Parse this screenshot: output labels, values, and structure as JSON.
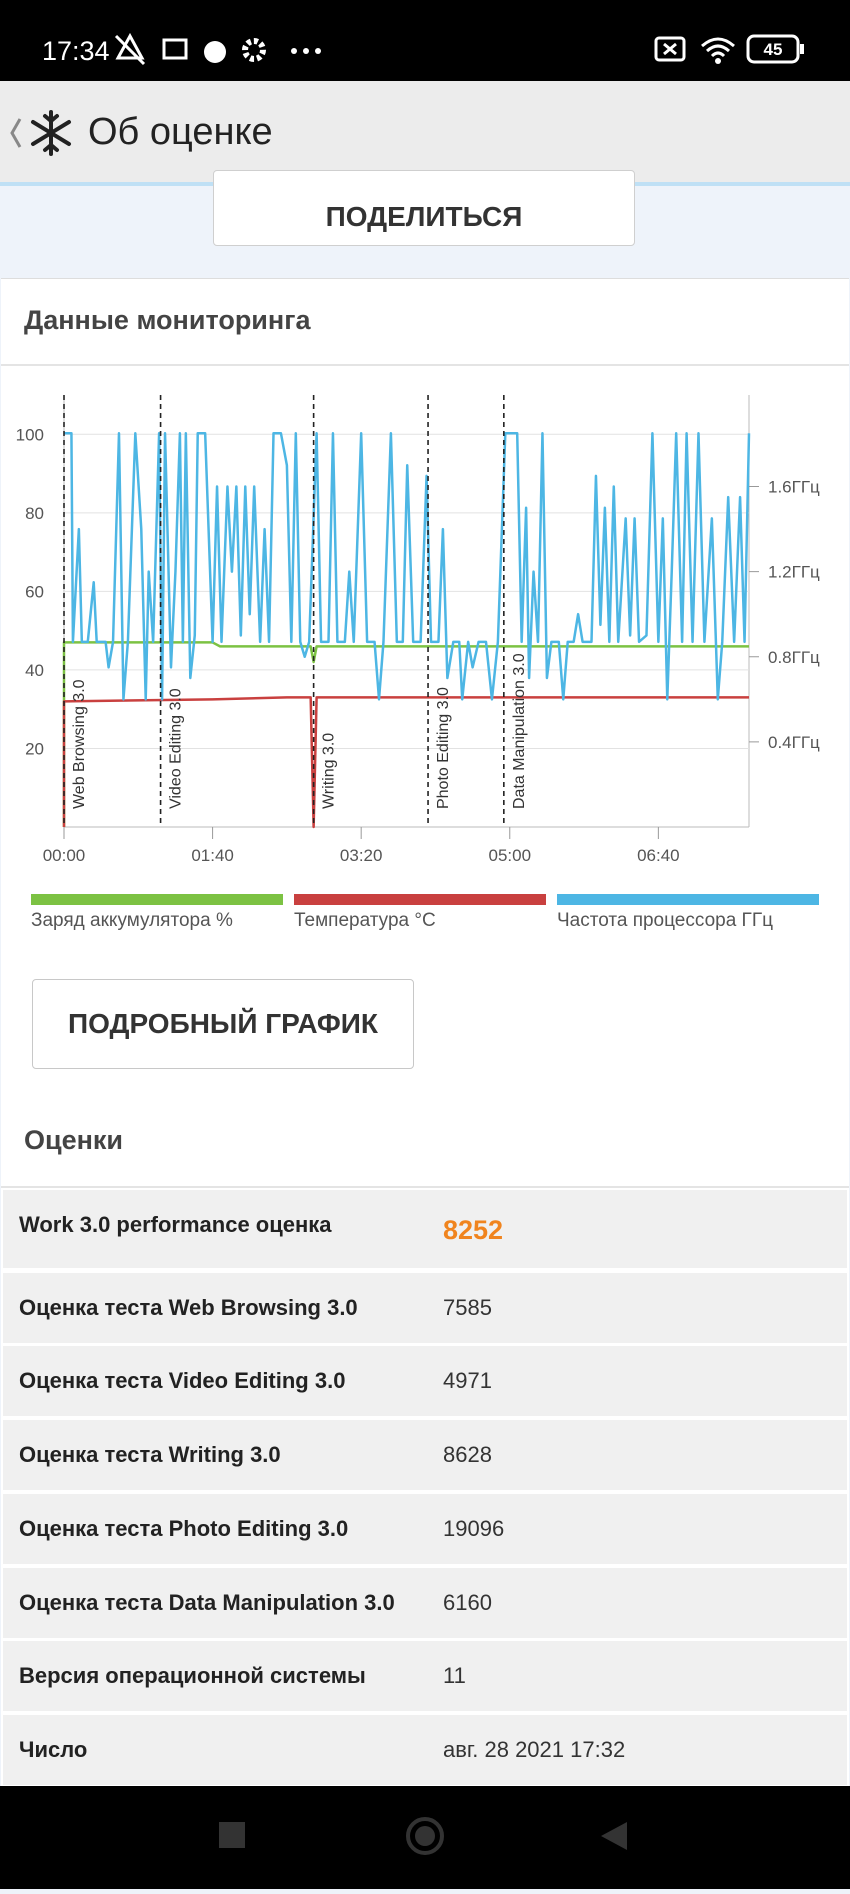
{
  "status_bar": {
    "time": "17:34",
    "battery": "45"
  },
  "header": {
    "title": "Об оценке"
  },
  "share_button": "ПОДЕЛИТЬСЯ",
  "monitoring": {
    "title": "Данные мониторинга",
    "details_button": "ПОДРОБНЫЙ ГРАФИК"
  },
  "chart_data": {
    "type": "line",
    "xlim": [
      0,
      461
    ],
    "xticks": [
      {
        "value": 0,
        "label": "00:00"
      },
      {
        "value": 100,
        "label": "01:40"
      },
      {
        "value": 200,
        "label": "03:20"
      },
      {
        "value": 300,
        "label": "05:00"
      },
      {
        "value": 400,
        "label": "06:40"
      }
    ],
    "ylim": [
      0,
      110
    ],
    "yticks": [
      20,
      40,
      60,
      80,
      100
    ],
    "y2lim": [
      0,
      2.03
    ],
    "y2ticks": [
      {
        "value": 0.4,
        "label": "0.4ГГц"
      },
      {
        "value": 0.8,
        "label": "0.8ГГц"
      },
      {
        "value": 1.2,
        "label": "1.2ГГц"
      },
      {
        "value": 1.6,
        "label": "1.6ГГц"
      }
    ],
    "grid": true,
    "legend": "bottom",
    "annotations": [
      {
        "x": 0,
        "label": "Web Browsing 3.0"
      },
      {
        "x": 65,
        "label": "Video Editing 3.0"
      },
      {
        "x": 168,
        "label": "Writing 3.0"
      },
      {
        "x": 245,
        "label": "Photo Editing 3.0"
      },
      {
        "x": 296,
        "label": "Data Manipulation 3.0"
      }
    ],
    "series": [
      {
        "name": "Заряд аккумулятора %",
        "color": "#7cc243",
        "x": [
          0,
          0,
          100,
          105,
          166,
          168,
          170,
          461
        ],
        "values": [
          0,
          47,
          47,
          46,
          46,
          42,
          46,
          46
        ]
      },
      {
        "name": "Температура °C",
        "color": "#c9403f",
        "x": [
          0,
          0,
          100,
          150,
          166,
          168,
          170,
          461
        ],
        "values": [
          0,
          32,
          32.5,
          33,
          33,
          0,
          33,
          33
        ]
      },
      {
        "name": "Частота процессора ГГц",
        "color": "#4db6e4",
        "axis": "y2",
        "x": [
          0,
          5,
          6,
          10,
          12,
          16,
          20,
          22,
          28,
          30,
          33,
          37,
          40,
          43,
          48,
          52,
          55,
          57,
          60,
          64,
          66,
          68,
          72,
          75,
          78,
          80,
          82,
          85,
          88,
          90,
          95,
          100,
          103,
          106,
          110,
          113,
          116,
          119,
          122,
          125,
          128,
          132,
          135,
          138,
          141,
          146,
          150,
          153,
          156,
          159,
          162,
          165,
          170,
          173,
          178,
          181,
          184,
          189,
          192,
          195,
          200,
          204,
          209,
          212,
          215,
          220,
          224,
          228,
          231,
          235,
          240,
          244,
          247,
          252,
          255,
          258,
          262,
          266,
          268,
          272,
          275,
          279,
          284,
          288,
          292,
          297,
          305,
          308,
          311,
          313,
          316,
          319,
          322,
          325,
          328,
          333,
          336,
          339,
          343,
          346,
          349,
          355,
          358,
          361,
          364,
          367,
          370,
          373,
          378,
          381,
          384,
          387,
          392,
          396,
          400,
          403,
          406,
          409,
          412,
          416,
          419,
          423,
          427,
          431,
          436,
          440,
          443,
          447,
          451,
          455,
          458,
          461
        ],
        "values": [
          1.85,
          1.85,
          0.87,
          1.4,
          0.87,
          0.87,
          1.15,
          0.87,
          0.87,
          0.75,
          0.87,
          1.85,
          0.6,
          0.87,
          1.85,
          1.4,
          0.6,
          1.2,
          0.87,
          1.85,
          0.6,
          1.85,
          0.75,
          1.2,
          1.85,
          0.87,
          1.85,
          0.7,
          0.9,
          1.85,
          1.85,
          0.87,
          1.6,
          0.87,
          1.6,
          1.2,
          1.6,
          0.9,
          1.6,
          1.0,
          1.6,
          0.87,
          1.4,
          0.87,
          1.85,
          1.85,
          1.7,
          0.87,
          1.85,
          0.87,
          0.8,
          0.87,
          1.85,
          0.87,
          0.87,
          1.85,
          0.87,
          0.87,
          1.2,
          0.87,
          1.85,
          0.87,
          0.87,
          0.6,
          0.87,
          1.85,
          0.87,
          0.87,
          1.7,
          0.87,
          0.87,
          1.65,
          0.87,
          0.87,
          1.4,
          0.7,
          0.87,
          0.87,
          0.6,
          0.87,
          0.75,
          0.87,
          0.87,
          0.6,
          0.87,
          1.85,
          1.85,
          0.87,
          1.5,
          0.7,
          1.2,
          0.87,
          1.85,
          0.7,
          0.87,
          0.87,
          0.6,
          0.87,
          0.87,
          1.0,
          0.87,
          0.87,
          1.65,
          0.95,
          1.5,
          0.87,
          1.6,
          0.87,
          1.45,
          0.9,
          1.45,
          0.87,
          0.9,
          1.85,
          0.87,
          1.45,
          0.6,
          1.2,
          1.85,
          0.87,
          1.85,
          0.87,
          1.85,
          0.87,
          1.45,
          0.6,
          0.87,
          1.55,
          0.87,
          1.55,
          0.87,
          1.85
        ]
      }
    ]
  },
  "scores": {
    "title": "Оценки",
    "rows": [
      [
        "Work 3.0 performance оценка",
        "8252"
      ],
      [
        "Оценка теста Web Browsing 3.0",
        "7585"
      ],
      [
        "Оценка теста Video Editing 3.0",
        "4971"
      ],
      [
        "Оценка теста Writing 3.0",
        "8628"
      ],
      [
        "Оценка теста Photo Editing 3.0",
        "19096"
      ],
      [
        "Оценка теста Data Manipulation 3.0",
        "6160"
      ],
      [
        "Версия операционной системы",
        "11"
      ],
      [
        "Число",
        "авг. 28 2021 17:32"
      ]
    ]
  }
}
